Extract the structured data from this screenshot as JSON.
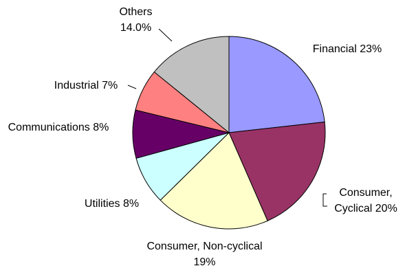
{
  "chart_data": {
    "type": "pie",
    "categories": [
      "Financial",
      "Consumer, Cyclical",
      "Consumer, Non-cyclical",
      "Utilities",
      "Communications",
      "Industrial",
      "Others"
    ],
    "values": [
      23,
      20,
      19,
      8,
      8,
      7,
      14.0
    ],
    "value_labels": [
      "23%",
      "20%",
      "19%",
      "8%",
      "8%",
      "7%",
      "14.0%"
    ],
    "colors": [
      "#9999ff",
      "#993366",
      "#ffffcc",
      "#ccffff",
      "#660066",
      "#ff8080",
      "#c0c0c0"
    ]
  }
}
